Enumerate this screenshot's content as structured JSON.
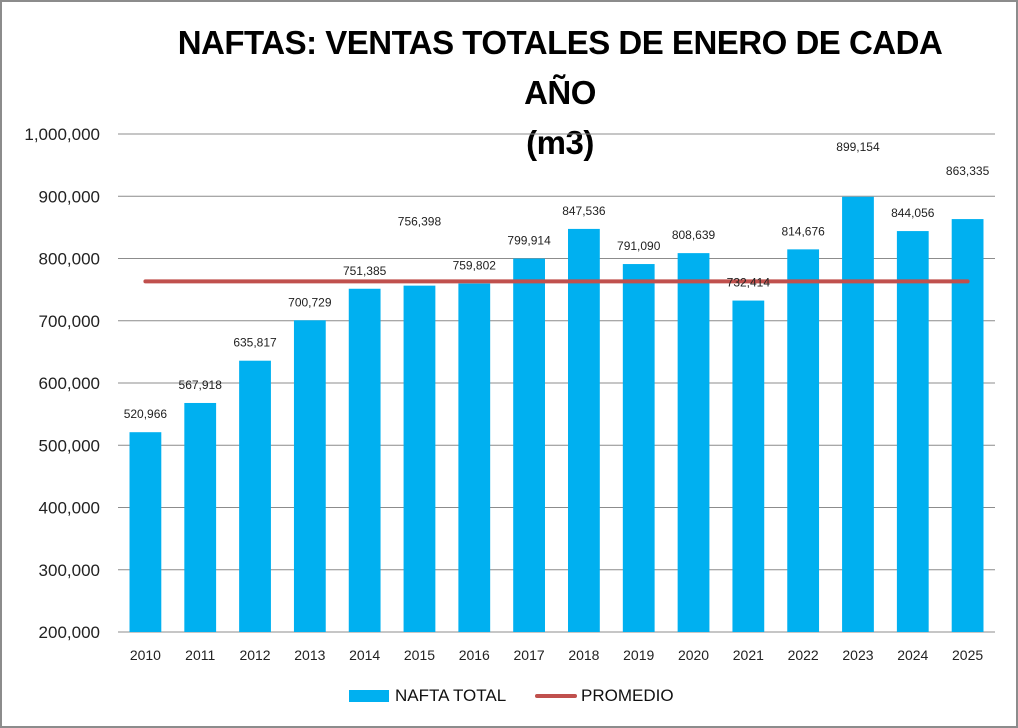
{
  "chart_data": {
    "type": "bar",
    "title": "NAFTAS: VENTAS TOTALES DE ENERO DE CADA AÑO (m3)",
    "title_lines": [
      "NAFTAS: VENTAS TOTALES DE ENERO DE CADA AÑO",
      "(m3)"
    ],
    "xlabel": "",
    "ylabel": "",
    "categories": [
      "2010",
      "2011",
      "2012",
      "2013",
      "2014",
      "2015",
      "2016",
      "2017",
      "2018",
      "2019",
      "2020",
      "2021",
      "2022",
      "2023",
      "2024",
      "2025"
    ],
    "series": [
      {
        "name": "NAFTA TOTAL",
        "type": "bar",
        "color": "#00b0f0",
        "values": [
          520966,
          567918,
          635817,
          700729,
          751385,
          756398,
          759802,
          799914,
          847536,
          791090,
          808639,
          732414,
          814676,
          899154,
          844056,
          863335
        ],
        "labels": [
          "520,966",
          "567,918",
          "635,817",
          "700,729",
          "751,385",
          "756,398",
          "759,802",
          "799,914",
          "847,536",
          "791,090",
          "808,639",
          "732,414",
          "814,676",
          "899,154",
          "844,056",
          "863,335"
        ]
      },
      {
        "name": "PROMEDIO",
        "type": "line",
        "color": "#c0504d",
        "value": 763300
      }
    ],
    "ylim": [
      200000,
      1000000
    ],
    "yticks": [
      200000,
      300000,
      400000,
      500000,
      600000,
      700000,
      800000,
      900000,
      1000000
    ],
    "ytick_labels": [
      "200,000",
      "300,000",
      "400,000",
      "500,000",
      "600,000",
      "700,000",
      "800,000",
      "900,000",
      "1,000,000"
    ],
    "grid": true,
    "legend": "bottom"
  },
  "legend": {
    "items": [
      {
        "label": "NAFTA TOTAL",
        "color": "#00b0f0",
        "kind": "bar"
      },
      {
        "label": "PROMEDIO",
        "color": "#c0504d",
        "kind": "line"
      }
    ]
  }
}
